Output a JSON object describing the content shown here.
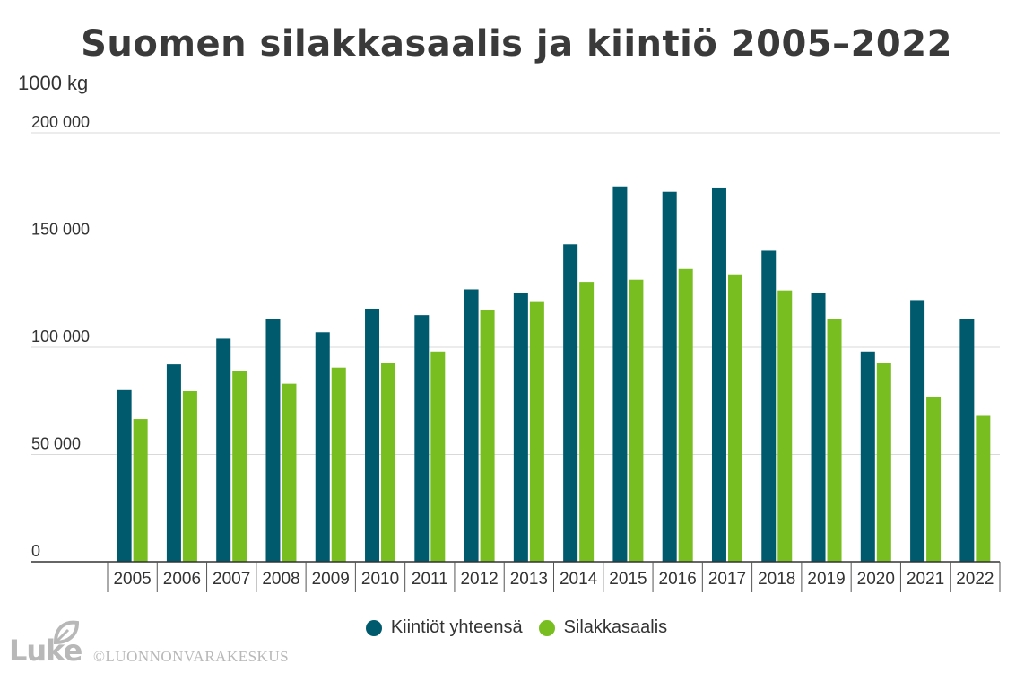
{
  "chart_data": {
    "type": "bar",
    "title": "Suomen silakkasaalis ja kiintiö 2005–2022",
    "ylabel": "1000 kg",
    "xlabel": "",
    "ylim": [
      0,
      200000
    ],
    "yticks": [
      0,
      50000,
      100000,
      150000,
      200000
    ],
    "ytick_labels": [
      "0",
      "50 000",
      "100 000",
      "150 000",
      "200 000"
    ],
    "grid": true,
    "legend_position": "bottom",
    "categories": [
      "2005",
      "2006",
      "2007",
      "2008",
      "2009",
      "2010",
      "2011",
      "2012",
      "2013",
      "2014",
      "2015",
      "2016",
      "2017",
      "2018",
      "2019",
      "2020",
      "2021",
      "2022"
    ],
    "series": [
      {
        "name": "Kiintiöt yhteensä",
        "color": "#005A6E",
        "values": [
          80000,
          92000,
          104000,
          113000,
          107000,
          118000,
          115000,
          127000,
          125500,
          148000,
          175000,
          172500,
          174500,
          145000,
          125500,
          98000,
          122000,
          113000
        ]
      },
      {
        "name": "Silakkasaalis",
        "color": "#78BE20",
        "values": [
          66500,
          79500,
          89000,
          83000,
          90500,
          92500,
          98000,
          117500,
          121500,
          130500,
          131500,
          136500,
          134000,
          126500,
          113000,
          92500,
          77000,
          68000
        ]
      }
    ]
  },
  "footer": {
    "logo_text": "Luke",
    "copyright": "©LUONNONVARAKESKUS"
  }
}
